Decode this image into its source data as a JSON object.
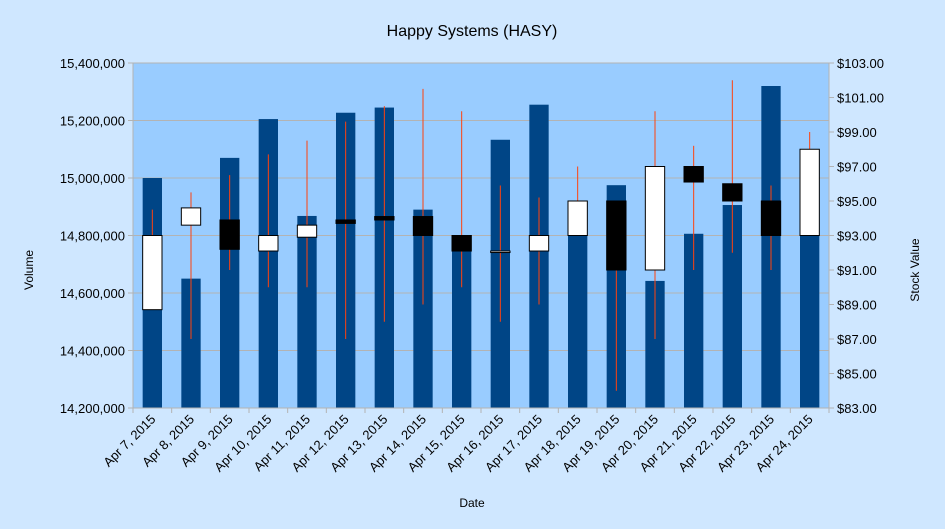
{
  "chart_data": {
    "type": "bar",
    "title": "Happy Systems (HASY)",
    "xlabel": "Date",
    "ylabel": "Volume",
    "y2label": "Stock Value",
    "categories": [
      "Apr 7, 2015",
      "Apr 8, 2015",
      "Apr 9, 2015",
      "Apr 10, 2015",
      "Apr 11, 2015",
      "Apr 12, 2015",
      "Apr 13, 2015",
      "Apr 14, 2015",
      "Apr 15, 2015",
      "Apr 16, 2015",
      "Apr 17, 2015",
      "Apr 18, 2015",
      "Apr 19, 2015",
      "Apr 20, 2015",
      "Apr 21, 2015",
      "Apr 22, 2015",
      "Apr 23, 2015",
      "Apr 24, 2015"
    ],
    "ylim": [
      14200000,
      15400000
    ],
    "y2lim": [
      83,
      103
    ],
    "yticks": [
      "14,200,000",
      "14,400,000",
      "14,600,000",
      "14,800,000",
      "15,000,000",
      "15,200,000",
      "15,400,000"
    ],
    "y2ticks": [
      "$83.00",
      "$85.00",
      "$87.00",
      "$89.00",
      "$91.00",
      "$93.00",
      "$95.00",
      "$97.00",
      "$99.00",
      "$101.00",
      "$103.00"
    ],
    "grid": true,
    "colors": {
      "plot_bg": "#99ccff",
      "page_bg": "#cfe7ff",
      "volume_bar": "#004586",
      "wick": "#ff420e",
      "up_box": "#ffffff",
      "down_box": "#000000",
      "gridline": "#b3b3b3"
    },
    "series": [
      {
        "values": [
          15000000,
          14650000,
          15070000,
          15205000,
          14868000,
          15227000,
          15245000,
          14890000,
          14792000,
          15133000,
          15255000,
          14800000,
          14975000,
          14642000,
          14806000,
          14906000,
          15320000,
          14800000
        ]
      },
      {
        "open": [
          88.7,
          93.6,
          93.9,
          92.1,
          92.9,
          93.9,
          94.1,
          94.1,
          93.0,
          92.1,
          92.1,
          93.0,
          95.0,
          91.0,
          97.0,
          96.0,
          95.0,
          93.0
        ],
        "close": [
          93.0,
          94.6,
          92.2,
          93.0,
          93.6,
          93.7,
          93.9,
          93.0,
          92.1,
          92.1,
          93.0,
          95.0,
          91.0,
          97.0,
          96.1,
          95.0,
          93.0,
          98.0
        ],
        "high": [
          94.5,
          95.5,
          96.5,
          97.7,
          98.5,
          99.6,
          100.5,
          101.5,
          100.2,
          95.9,
          95.2,
          97.0,
          95.0,
          100.2,
          98.2,
          102.0,
          95.9,
          99.0
        ],
        "low": [
          88.7,
          87.0,
          91.0,
          90.0,
          90.0,
          87.0,
          88.0,
          89.0,
          90.0,
          88.0,
          89.0,
          93.0,
          84.0,
          87.0,
          91.0,
          92.0,
          91.0,
          93.0
        ]
      }
    ]
  }
}
